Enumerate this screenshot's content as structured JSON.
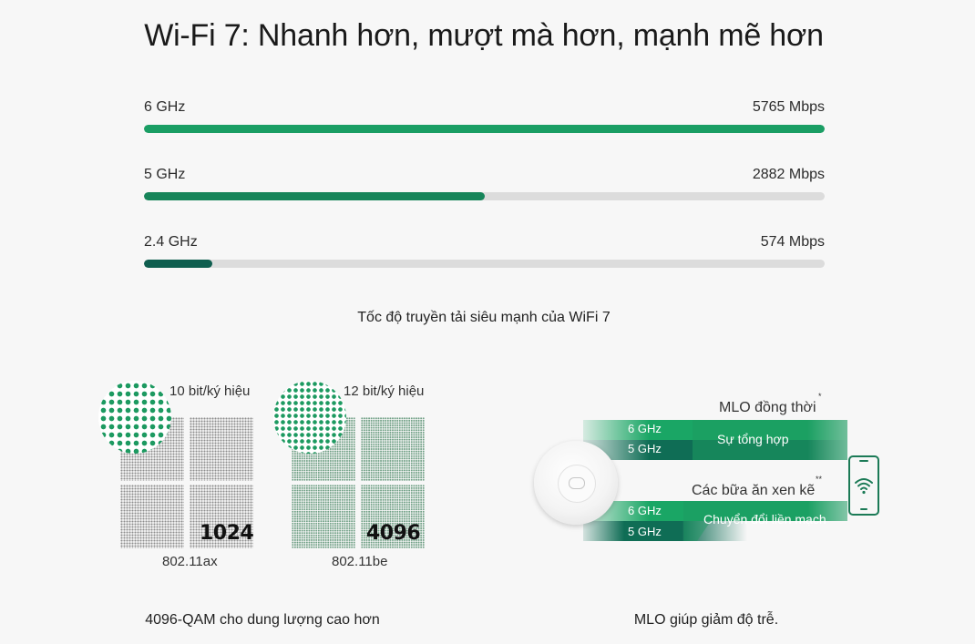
{
  "title": "Wi-Fi 7: Nhanh hơn, mượt mà hơn, mạnh mẽ hơn",
  "speeds": [
    {
      "band": "6 GHz",
      "value": "5765  Mbps",
      "fraction": 1.0,
      "color": "#1a9e64"
    },
    {
      "band": "5 GHz",
      "value": "2882 Mbps",
      "fraction": 0.5,
      "color": "#17855a"
    },
    {
      "band": "2.4 GHz",
      "value": "574 Mbps",
      "fraction": 0.1,
      "color": "#0f5e4f"
    }
  ],
  "speed_caption": "Tốc độ truyền tải siêu mạnh của WiFi 7",
  "qam": {
    "ax": {
      "bits": "10 bit/ký hiệu",
      "number": "1024",
      "standard": "802.11ax"
    },
    "be": {
      "bits": "12 bit/ký hiệu",
      "number": "4096",
      "standard": "802.11be"
    },
    "caption": "4096-QAM cho dung lượng cao hơn"
  },
  "mlo": {
    "sim_title": "MLO đồng thời",
    "sim_mark": "*",
    "sim_top_band": "6 GHz",
    "sim_bottom_band": "5 GHz",
    "sim_label": "Sự tổng hợp",
    "alt_title": "Các bữa ăn xen kẽ",
    "alt_mark": "**",
    "alt_top_band": "6 GHz",
    "alt_bottom_band": "5 GHz",
    "alt_label": "Chuyển đổi liền mạch",
    "caption": "MLO giúp giảm độ trễ."
  },
  "colors": {
    "accent": "#1a9e64",
    "dark_green": "#0f5e4f",
    "track": "#dcdcdc"
  }
}
